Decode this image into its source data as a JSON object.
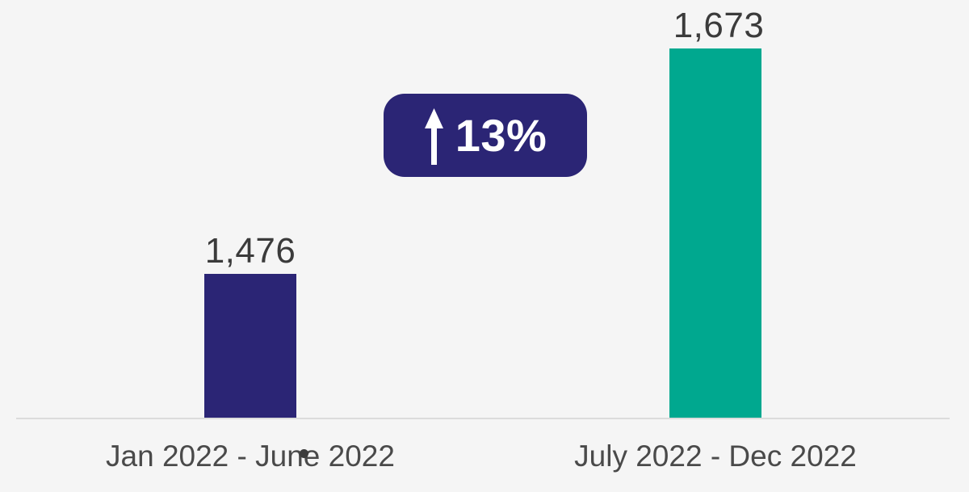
{
  "page": {
    "background": "#f5f5f5",
    "baseline_color": "#dcdcdc"
  },
  "chart_data": {
    "type": "bar",
    "title": "",
    "xlabel": "",
    "ylabel": "",
    "categories": [
      "Jan 2022 - June 2022",
      "July 2022 - Dec 2022"
    ],
    "values": [
      1476,
      1673
    ],
    "value_labels": [
      "1,476",
      "1,673"
    ],
    "bar_colors": [
      "#2b2575",
      "#00a88f"
    ],
    "ylim": [
      1350,
      1673
    ],
    "grid": false,
    "legend": "none",
    "axis_ticks": "none",
    "value_label_color": "#3b3b3b",
    "category_label_color": "#4a4a4a",
    "annotation": {
      "icon": "up-arrow-icon",
      "label": "13%",
      "background": "#2b2575",
      "text_color": "#ffffff"
    }
  }
}
